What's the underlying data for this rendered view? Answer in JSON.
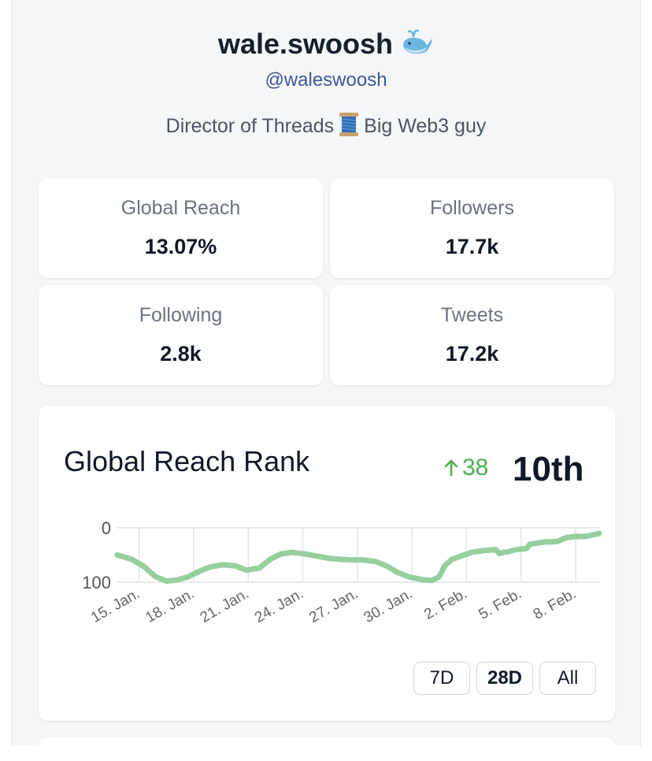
{
  "profile": {
    "name": "wale.swoosh",
    "name_icon": "whale-icon",
    "handle": "@waleswoosh",
    "bio_before": "Director of Threads",
    "bio_icon": "thread-spool-icon",
    "bio_after": "Big Web3 guy"
  },
  "stats": [
    {
      "label": "Global Reach",
      "value": "13.07%"
    },
    {
      "label": "Followers",
      "value": "17.7k"
    },
    {
      "label": "Following",
      "value": "2.8k"
    },
    {
      "label": "Tweets",
      "value": "17.2k"
    }
  ],
  "rank": {
    "title": "Global Reach Rank",
    "change": "38",
    "change_icon": "arrow-up-icon",
    "position": "10th"
  },
  "range_buttons": [
    {
      "label": "7D",
      "active": false
    },
    {
      "label": "28D",
      "active": true
    },
    {
      "label": "All",
      "active": false
    }
  ],
  "colors": {
    "line": "#95cf9d",
    "up": "#4caf50",
    "handle": "#3b5998"
  },
  "chart_data": {
    "type": "line",
    "title": "Global Reach Rank",
    "xlabel": "",
    "ylabel": "",
    "y_inverted": true,
    "ylim": [
      0,
      100
    ],
    "yticks": [
      "0",
      "100"
    ],
    "x_start": 13.8,
    "x_end": 40.3,
    "x_tick_days": [
      15,
      18,
      21,
      24,
      27,
      30,
      33,
      36,
      39
    ],
    "x_tick_labels": [
      "15. Jan.",
      "18. Jan.",
      "21. Jan.",
      "24. Jan.",
      "27. Jan.",
      "30. Jan.",
      "2. Feb.",
      "5. Feb.",
      "8. Feb."
    ],
    "series": [
      {
        "name": "Global Reach Rank",
        "x": [
          13.8,
          14.6,
          15.3,
          15.9,
          16.5,
          17.1,
          17.7,
          18.3,
          18.9,
          19.6,
          20.3,
          20.9,
          21.6,
          22.2,
          22.8,
          23.4,
          24.1,
          24.8,
          25.4,
          26.1,
          26.7,
          27.3,
          28.0,
          28.6,
          29.2,
          29.8,
          30.5,
          31.1,
          31.5,
          31.8,
          32.2,
          32.7,
          33.3,
          33.9,
          34.6,
          34.8,
          35.1,
          35.3,
          35.6,
          35.8,
          36.3,
          36.5,
          36.9,
          37.3,
          37.6,
          38.0,
          38.5,
          39.0,
          39.5,
          39.8,
          40.1,
          40.3
        ],
        "y": [
          50,
          58,
          72,
          90,
          98,
          96,
          90,
          80,
          72,
          68,
          70,
          78,
          74,
          58,
          48,
          45,
          48,
          52,
          56,
          58,
          59,
          59,
          62,
          70,
          82,
          90,
          95,
          97,
          90,
          70,
          58,
          52,
          45,
          42,
          40,
          47,
          45,
          44,
          41,
          40,
          38,
          30,
          28,
          26,
          26,
          25,
          18,
          16,
          16,
          14,
          12,
          10
        ]
      }
    ]
  }
}
